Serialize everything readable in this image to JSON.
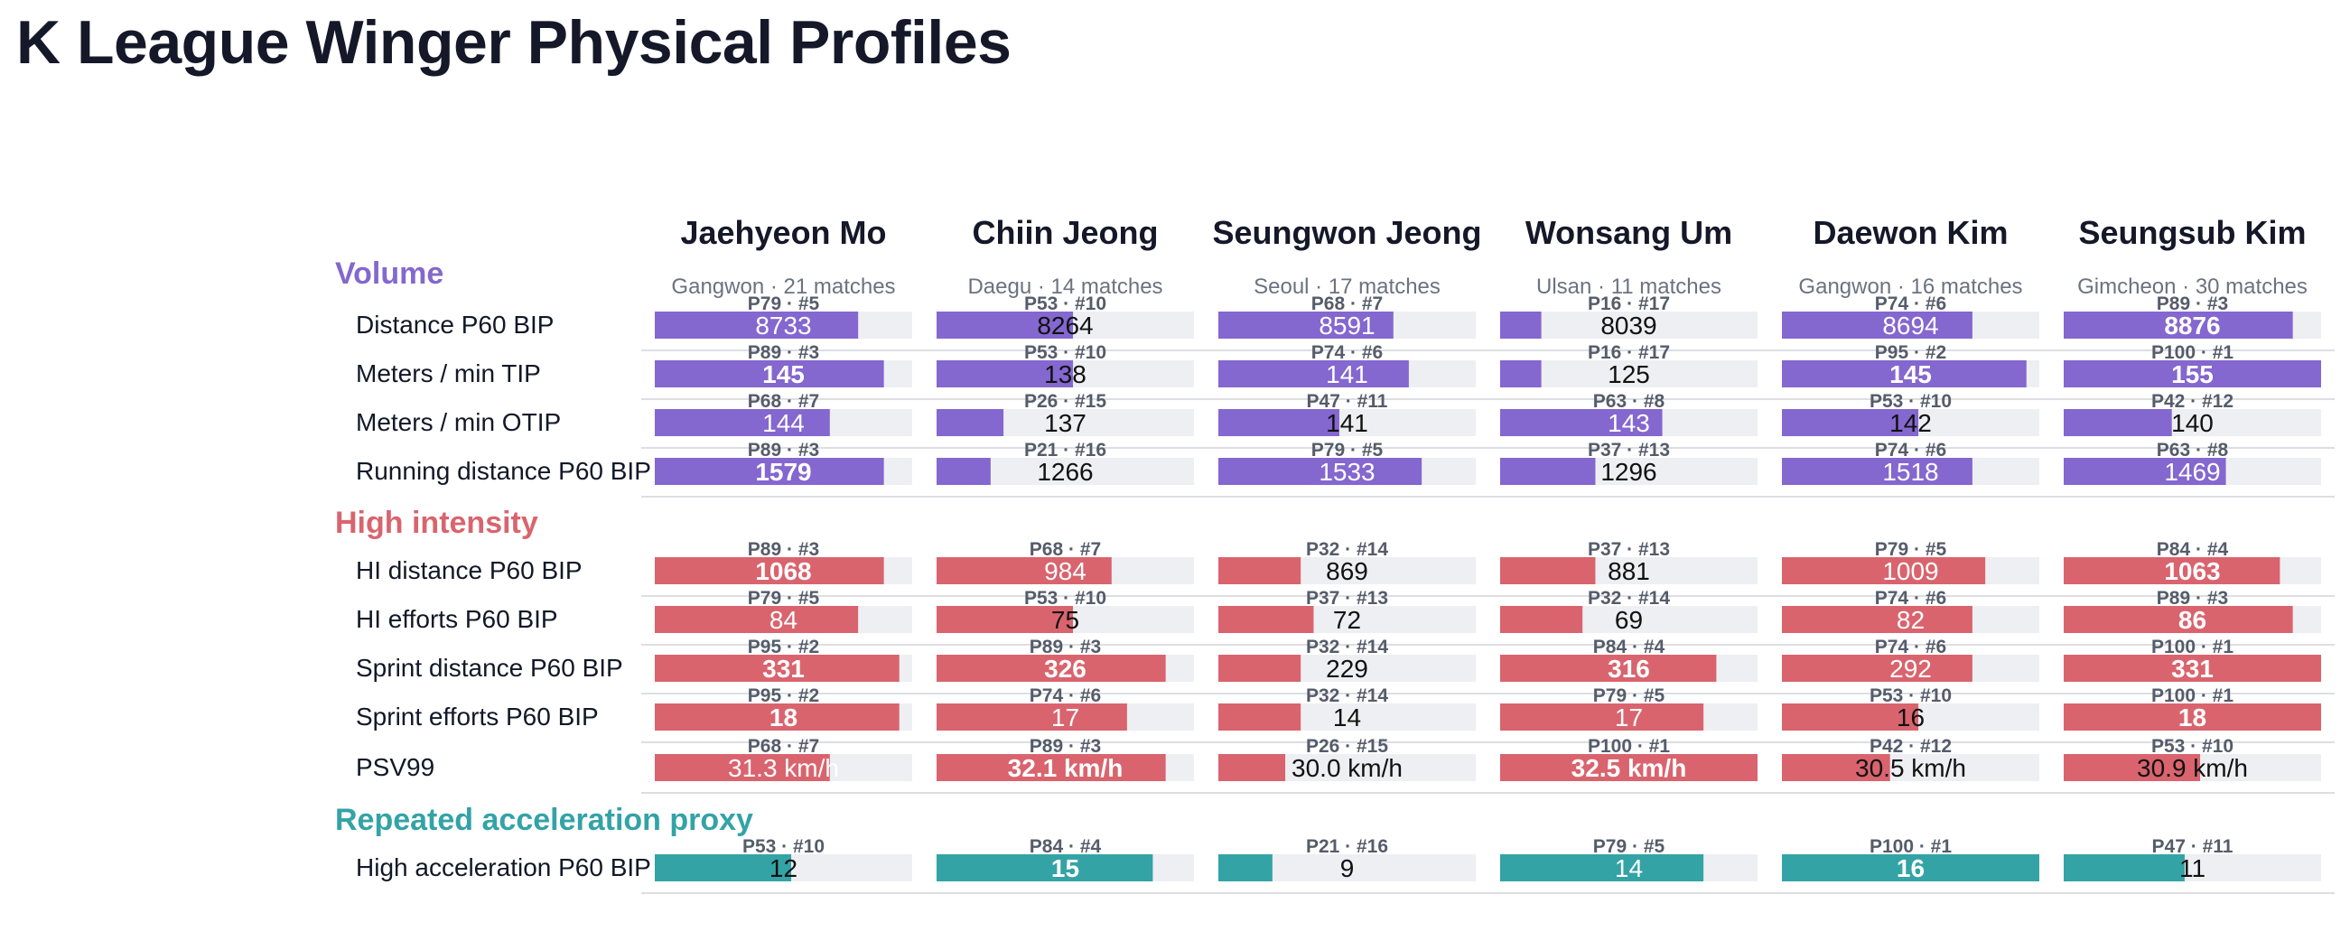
{
  "title": "K League Winger Physical Profiles",
  "colors": {
    "Volume": "#8467cf",
    "High intensity": "#d9646e",
    "Repeated acceleration proxy": "#33a3a6",
    "track": "#eeeff3",
    "rule": "#dcdee4"
  },
  "chart_data": {
    "type": "bar",
    "title": "K League Winger Physical Profiles",
    "players": [
      {
        "name": "Jaehyeon Mo",
        "sub": "Gangwon · 21 matches"
      },
      {
        "name": "Chiin Jeong",
        "sub": "Daegu · 14 matches"
      },
      {
        "name": "Seungwon Jeong",
        "sub": "Seoul · 17 matches"
      },
      {
        "name": "Wonsang Um",
        "sub": "Ulsan · 11 matches"
      },
      {
        "name": "Daewon Kim",
        "sub": "Gangwon · 16 matches"
      },
      {
        "name": "Seungsub Kim",
        "sub": "Gimcheon · 30 matches"
      }
    ],
    "sections": [
      {
        "name": "Volume",
        "metrics": [
          {
            "label": "Distance P60 BIP",
            "values": [
              "8733",
              "8264",
              "8591",
              "8039",
              "8694",
              "8876"
            ],
            "ranks": [
              "P79 · #5",
              "P53 · #10",
              "P68 · #7",
              "P16 · #17",
              "P74 · #6",
              "P89 · #3"
            ],
            "percentiles": [
              79,
              53,
              68,
              16,
              74,
              89
            ]
          },
          {
            "label": "Meters / min TIP",
            "values": [
              "145",
              "138",
              "141",
              "125",
              "145",
              "155"
            ],
            "ranks": [
              "P89 · #3",
              "P53 · #10",
              "P74 · #6",
              "P16 · #17",
              "P95 · #2",
              "P100 · #1"
            ],
            "percentiles": [
              89,
              53,
              74,
              16,
              95,
              100
            ]
          },
          {
            "label": "Meters / min OTIP",
            "values": [
              "144",
              "137",
              "141",
              "143",
              "142",
              "140"
            ],
            "ranks": [
              "P68 · #7",
              "P26 · #15",
              "P47 · #11",
              "P63 · #8",
              "P53 · #10",
              "P42 · #12"
            ],
            "percentiles": [
              68,
              26,
              47,
              63,
              53,
              42
            ]
          },
          {
            "label": "Running distance P60 BIP",
            "values": [
              "1579",
              "1266",
              "1533",
              "1296",
              "1518",
              "1469"
            ],
            "ranks": [
              "P89 · #3",
              "P21 · #16",
              "P79 · #5",
              "P37 · #13",
              "P74 · #6",
              "P63 · #8"
            ],
            "percentiles": [
              89,
              21,
              79,
              37,
              74,
              63
            ]
          }
        ]
      },
      {
        "name": "High intensity",
        "metrics": [
          {
            "label": "HI distance P60 BIP",
            "values": [
              "1068",
              "984",
              "869",
              "881",
              "1009",
              "1063"
            ],
            "ranks": [
              "P89 · #3",
              "P68 · #7",
              "P32 · #14",
              "P37 · #13",
              "P79 · #5",
              "P84 · #4"
            ],
            "percentiles": [
              89,
              68,
              32,
              37,
              79,
              84
            ]
          },
          {
            "label": "HI efforts P60 BIP",
            "values": [
              "84",
              "75",
              "72",
              "69",
              "82",
              "86"
            ],
            "ranks": [
              "P79 · #5",
              "P53 · #10",
              "P37 · #13",
              "P32 · #14",
              "P74 · #6",
              "P89 · #3"
            ],
            "percentiles": [
              79,
              53,
              37,
              32,
              74,
              89
            ]
          },
          {
            "label": "Sprint distance P60 BIP",
            "values": [
              "331",
              "326",
              "229",
              "316",
              "292",
              "331"
            ],
            "ranks": [
              "P95 · #2",
              "P89 · #3",
              "P32 · #14",
              "P84 · #4",
              "P74 · #6",
              "P100 · #1"
            ],
            "percentiles": [
              95,
              89,
              32,
              84,
              74,
              100
            ]
          },
          {
            "label": "Sprint efforts P60 BIP",
            "values": [
              "18",
              "17",
              "14",
              "17",
              "16",
              "18"
            ],
            "ranks": [
              "P95 · #2",
              "P74 · #6",
              "P32 · #14",
              "P79 · #5",
              "P53 · #10",
              "P100 · #1"
            ],
            "percentiles": [
              95,
              74,
              32,
              79,
              53,
              100
            ]
          },
          {
            "label": "PSV99",
            "values": [
              "31.3 km/h",
              "32.1 km/h",
              "30.0 km/h",
              "32.5 km/h",
              "30.5 km/h",
              "30.9 km/h"
            ],
            "ranks": [
              "P68 · #7",
              "P89 · #3",
              "P26 · #15",
              "P100 · #1",
              "P42 · #12",
              "P53 · #10"
            ],
            "percentiles": [
              68,
              89,
              26,
              100,
              42,
              53
            ]
          }
        ]
      },
      {
        "name": "Repeated acceleration proxy",
        "metrics": [
          {
            "label": "High acceleration P60 BIP",
            "values": [
              "12",
              "15",
              "9",
              "14",
              "16",
              "11"
            ],
            "ranks": [
              "P53 · #10",
              "P84 · #4",
              "P21 · #16",
              "P79 · #5",
              "P100 · #1",
              "P47 · #11"
            ],
            "percentiles": [
              53,
              84,
              21,
              79,
              100,
              47
            ]
          }
        ]
      }
    ]
  }
}
